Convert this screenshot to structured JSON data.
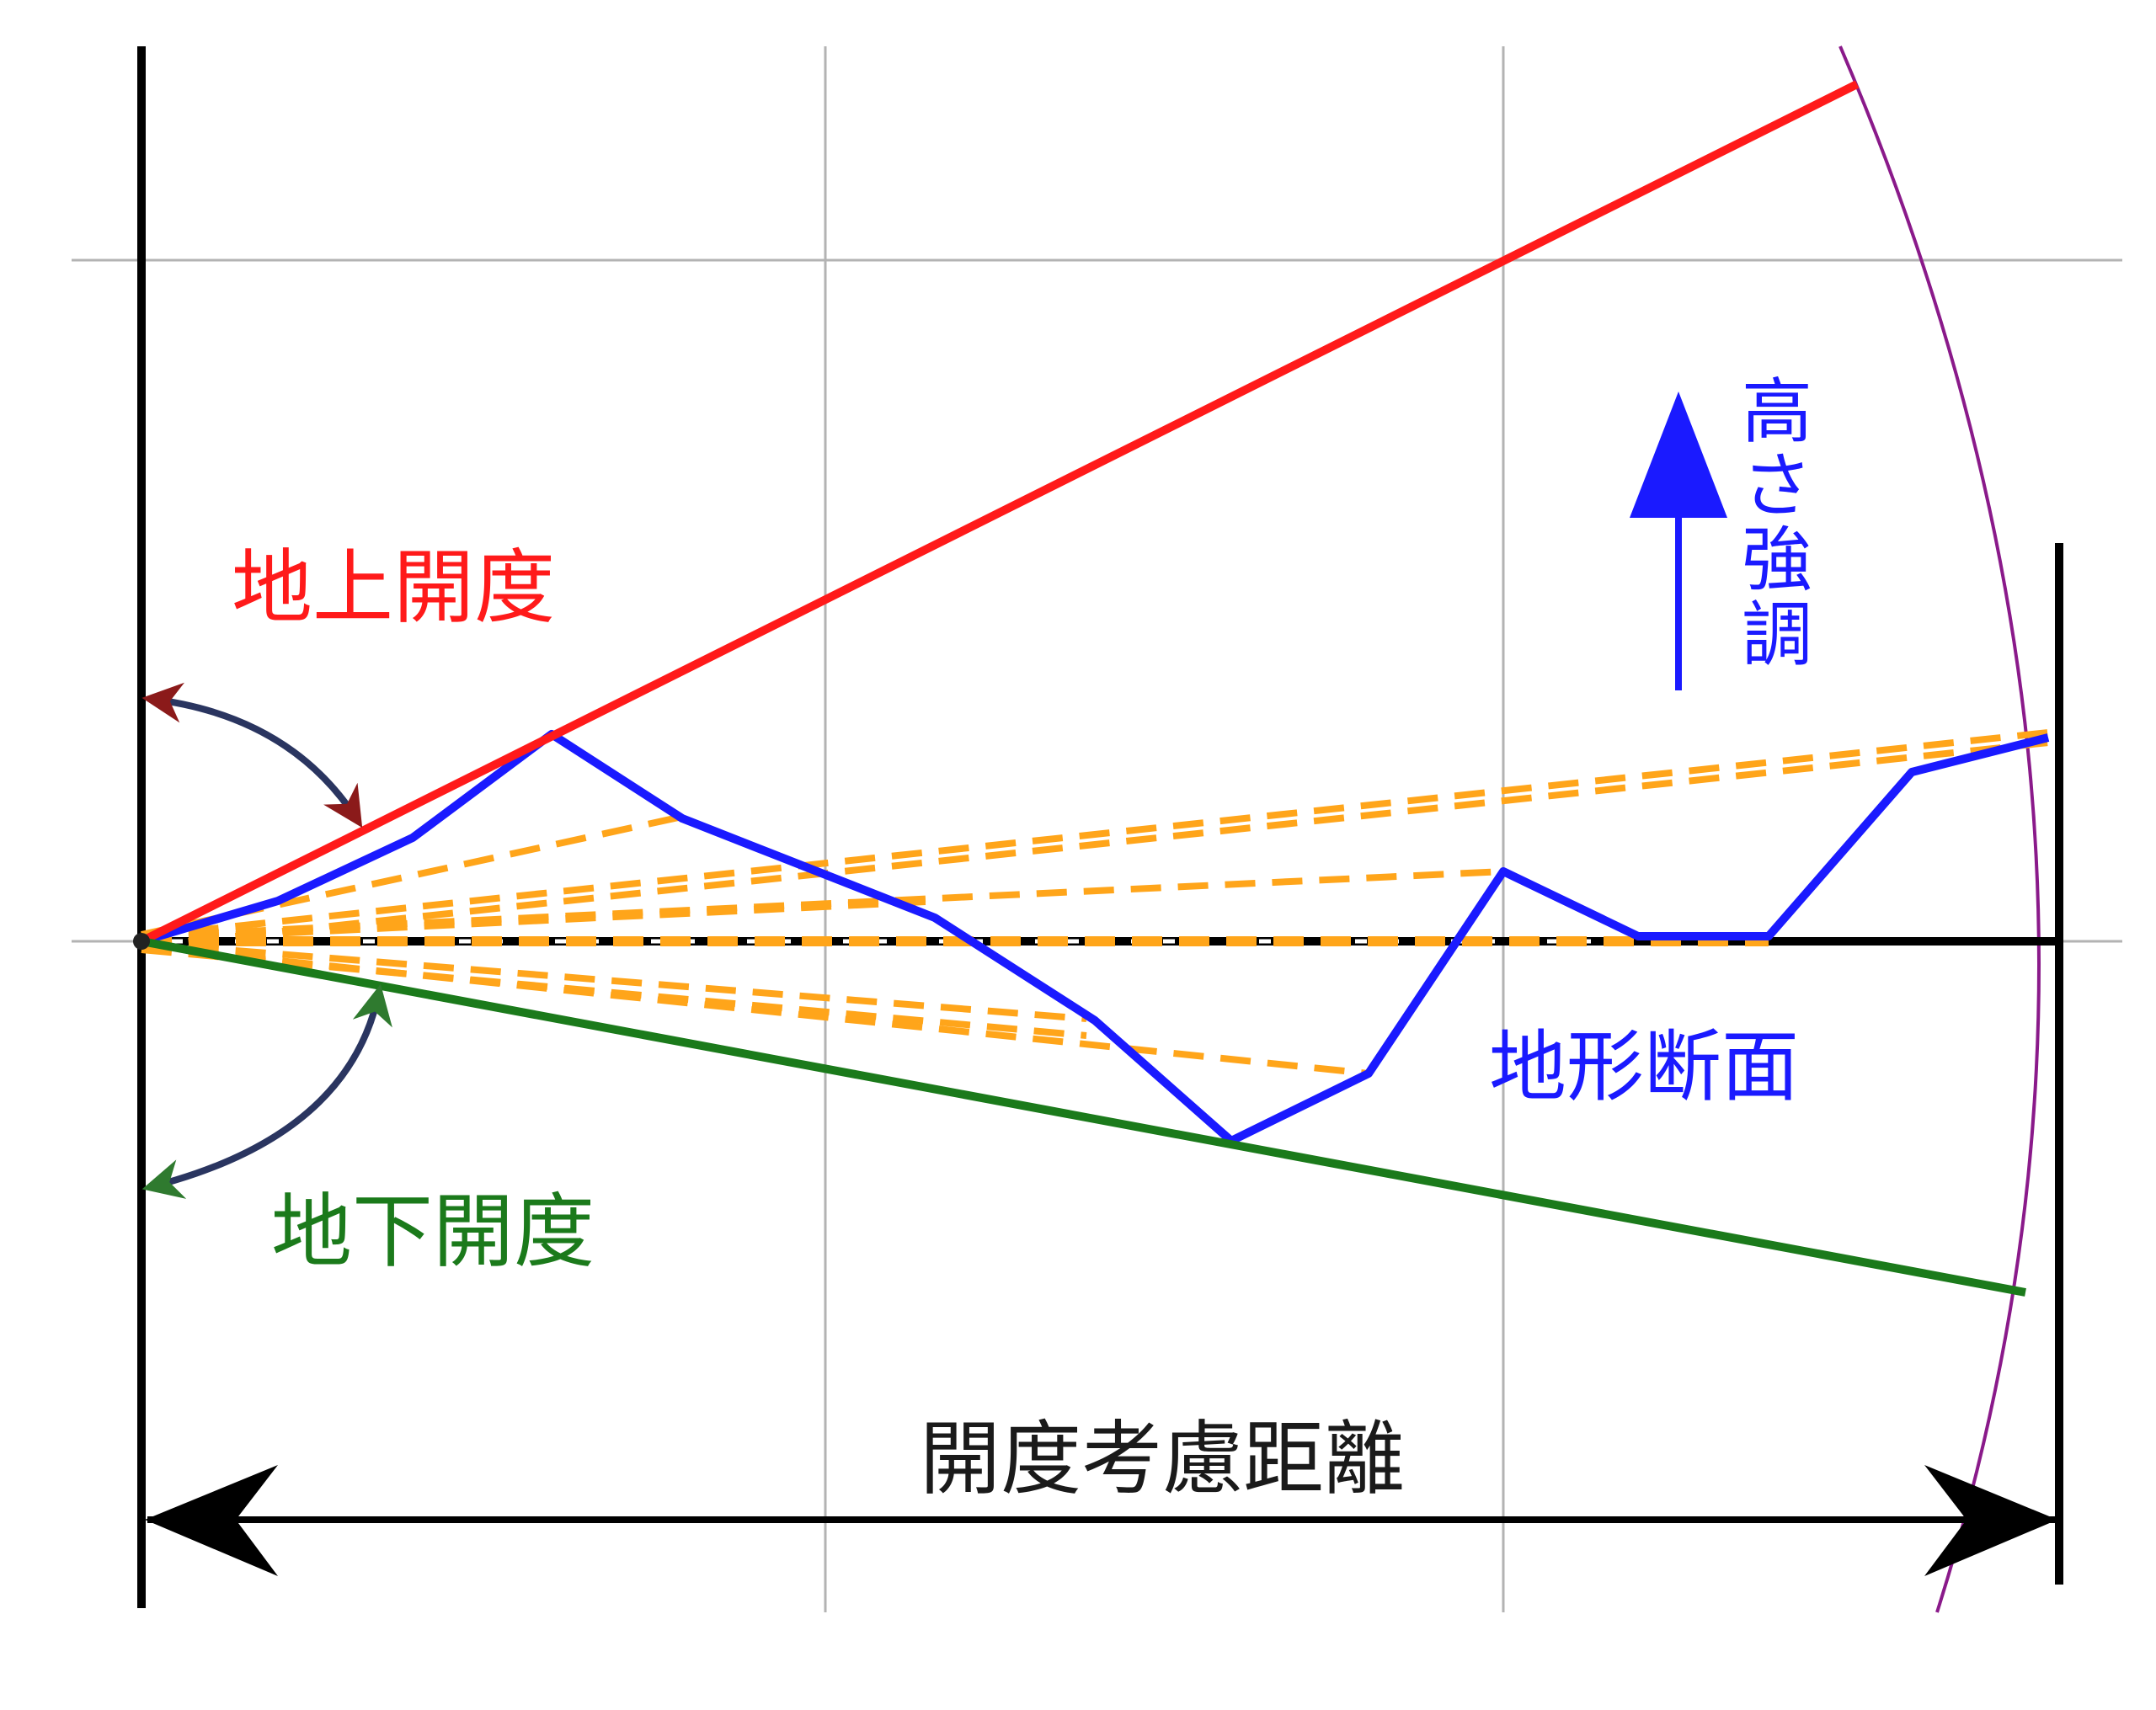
{
  "labels": {
    "openness_above": "地上開度",
    "openness_below": "地下開度",
    "terrain_profile": "地形断面",
    "height_emphasis": "高さ強調",
    "consideration_distance": "開度考慮距離"
  },
  "colors": {
    "openness_above": "#ff1a1a",
    "openness_below": "#1b7a1b",
    "terrain_profile": "#1a1aff",
    "sight_lines": "#ffa51a",
    "height_emphasis": "#1a1aff",
    "consideration_distance": "#1a1a1a",
    "boundary_arc": "#8a1a8a",
    "grid": "#b3b3b3",
    "arrow_upper": "#8b1a1a",
    "arrow_lower": "#2f7a2f"
  }
}
